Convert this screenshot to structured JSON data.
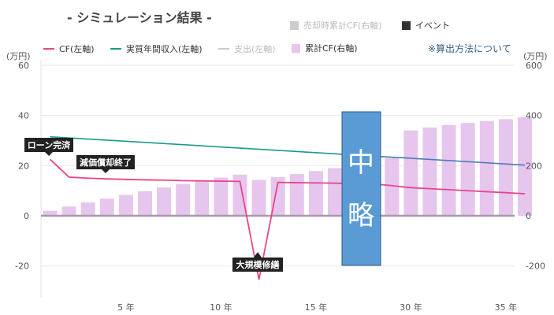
{
  "title": "- シミュレーション結果 -",
  "legend": {
    "top": [
      {
        "label": "売却時累計CF(右軸)",
        "color": "#cccccc",
        "kind": "square",
        "muted": true
      },
      {
        "label": "イベント",
        "color": "#333333",
        "kind": "square",
        "muted": false
      }
    ],
    "bottom": [
      {
        "label": "CF(左軸)",
        "color": "#e8468c",
        "kind": "line",
        "muted": false
      },
      {
        "label": "実質年間収入(左軸)",
        "color": "#1a9a8a",
        "kind": "line",
        "muted": false
      },
      {
        "label": "支出(左軸)",
        "color": "#cccccc",
        "kind": "line",
        "muted": true
      },
      {
        "label": "累計CF(右軸)",
        "color": "#e6c6ec",
        "kind": "square",
        "muted": false
      }
    ]
  },
  "note_link": "※算出方法について",
  "unit_left": "(万円)",
  "unit_right": "(万円)",
  "colors": {
    "cf": "#e8468c",
    "income": "#1a9a8a",
    "income_tail": "#4a78b8",
    "bars": "#e6c6ec",
    "zero_line": "#a79aa8",
    "grid": "#e8e8e8",
    "callout": "#222222",
    "omit_box": "#5b9bd5",
    "omit_border": "#2c5a8a"
  },
  "omit_label": [
    "中",
    "略"
  ],
  "chart_data": {
    "type": "bar",
    "left_axis": {
      "ylim": [
        -30,
        60
      ],
      "ticks": [
        -20,
        0,
        20,
        40,
        60
      ]
    },
    "right_axis": {
      "ylim": [
        -300,
        600
      ],
      "ticks": [
        -200,
        0,
        200,
        400,
        600
      ]
    },
    "x_ticks": [
      {
        "slot": 5,
        "label": "5 年"
      },
      {
        "slot": 10,
        "label": "10 年"
      },
      {
        "slot": 15,
        "label": "15 年"
      },
      {
        "slot": 20,
        "label": "30 年"
      },
      {
        "slot": 25,
        "label": "35 年"
      }
    ],
    "series": [
      {
        "name": "累計CF(右軸)",
        "axis": "right",
        "kind": "bar",
        "slots": [
          1,
          2,
          3,
          4,
          5,
          6,
          7,
          8,
          9,
          10,
          11,
          12,
          13,
          14,
          15,
          16,
          17,
          18,
          19,
          20,
          21,
          22,
          23,
          24,
          25,
          26
        ],
        "values": [
          20,
          37,
          53,
          68,
          83,
          98,
          113,
          127,
          140,
          152,
          164,
          143,
          154,
          166,
          178,
          190,
          202,
          215,
          230,
          340,
          352,
          362,
          370,
          378,
          385,
          393
        ]
      },
      {
        "name": "CF(左軸)",
        "axis": "left",
        "kind": "line",
        "x": [
          1,
          2,
          3,
          4,
          5,
          6,
          7,
          8,
          9,
          10,
          11,
          12,
          13,
          14,
          15,
          16,
          17,
          18,
          19,
          20,
          21,
          22,
          23,
          24,
          25,
          26
        ],
        "values": [
          22.5,
          15.4,
          15,
          14.7,
          14.5,
          14.3,
          14.2,
          14,
          13.9,
          13.8,
          13.7,
          -25.5,
          13.3,
          13.2,
          13.1,
          13,
          12.9,
          12.7,
          12,
          11.2,
          10.8,
          10.4,
          10,
          9.6,
          9.2,
          8.8
        ]
      },
      {
        "name": "実質年間収入(左軸)",
        "axis": "left",
        "kind": "line",
        "x": [
          1,
          26
        ],
        "values": [
          31.5,
          20.2
        ]
      }
    ],
    "events": [
      {
        "label": "ローン完済",
        "x": 1
      },
      {
        "label": "減価償却終了",
        "x": 4
      },
      {
        "label": "大規模修繕",
        "x": 12
      }
    ]
  }
}
